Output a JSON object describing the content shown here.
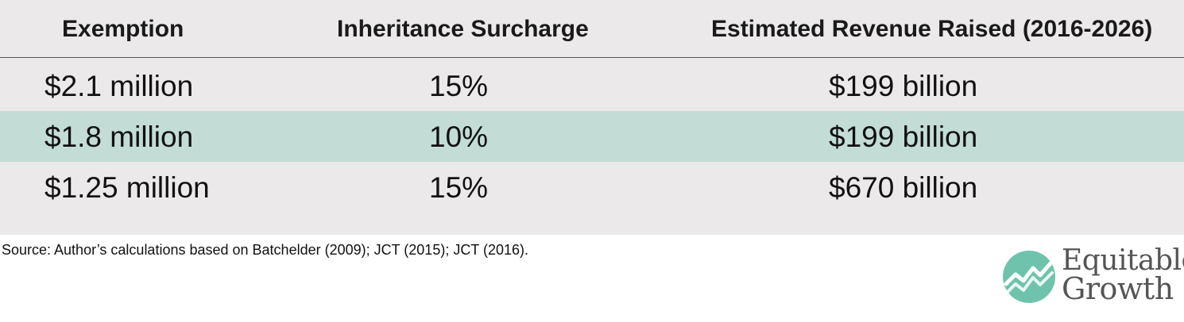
{
  "table": {
    "headers": [
      "Exemption",
      "Inheritance Surcharge",
      "Estimated Revenue Raised (2016-2026)"
    ],
    "rows": [
      [
        "$2.1 million",
        "15%",
        "$199 billion"
      ],
      [
        "$1.8 million",
        "10%",
        "$199 billion"
      ],
      [
        "$1.25 million",
        "15%",
        "$670 billion"
      ]
    ],
    "colors": {
      "panel_background": "#ece9ea",
      "highlight_row": "#c3ddd6"
    }
  },
  "source": "Source: Author’s calculations based on Batchelder (2009); JCT (2015); JCT (2016).",
  "logo": {
    "line1": "Equitable",
    "line2": "Growth",
    "icon": "equitable-growth-logo-icon",
    "colors": {
      "mark": "#6fc3ac",
      "text": "#555555"
    }
  }
}
